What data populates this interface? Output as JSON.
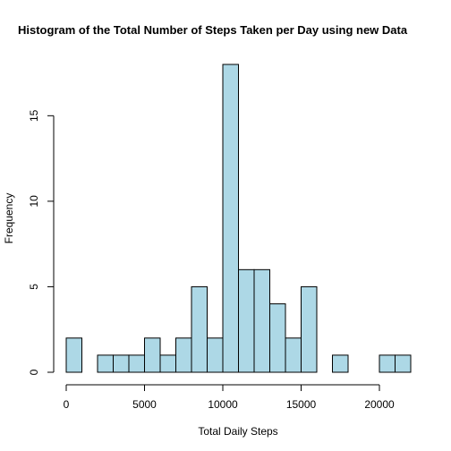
{
  "chart_data": {
    "type": "bar",
    "title": "Histogram of the Total Number of Steps Taken per Day using new Data",
    "xlabel": "Total Daily Steps",
    "ylabel": "Frequency",
    "bin_width": 1000,
    "bin_edges": [
      0,
      1000,
      2000,
      3000,
      4000,
      5000,
      6000,
      7000,
      8000,
      9000,
      10000,
      11000,
      12000,
      13000,
      14000,
      15000,
      16000,
      17000,
      18000,
      19000,
      20000,
      21000,
      22000
    ],
    "values": [
      2,
      0,
      1,
      1,
      1,
      2,
      1,
      2,
      5,
      2,
      18,
      6,
      6,
      4,
      2,
      5,
      0,
      1,
      0,
      0,
      1,
      1
    ],
    "xlim": [
      0,
      22000
    ],
    "ylim": [
      0,
      18
    ],
    "xticks": [
      0,
      5000,
      10000,
      15000,
      20000
    ],
    "yticks": [
      0,
      5,
      10,
      15
    ],
    "bar_color": "#ADD8E6",
    "grid": false,
    "legend": "none"
  }
}
